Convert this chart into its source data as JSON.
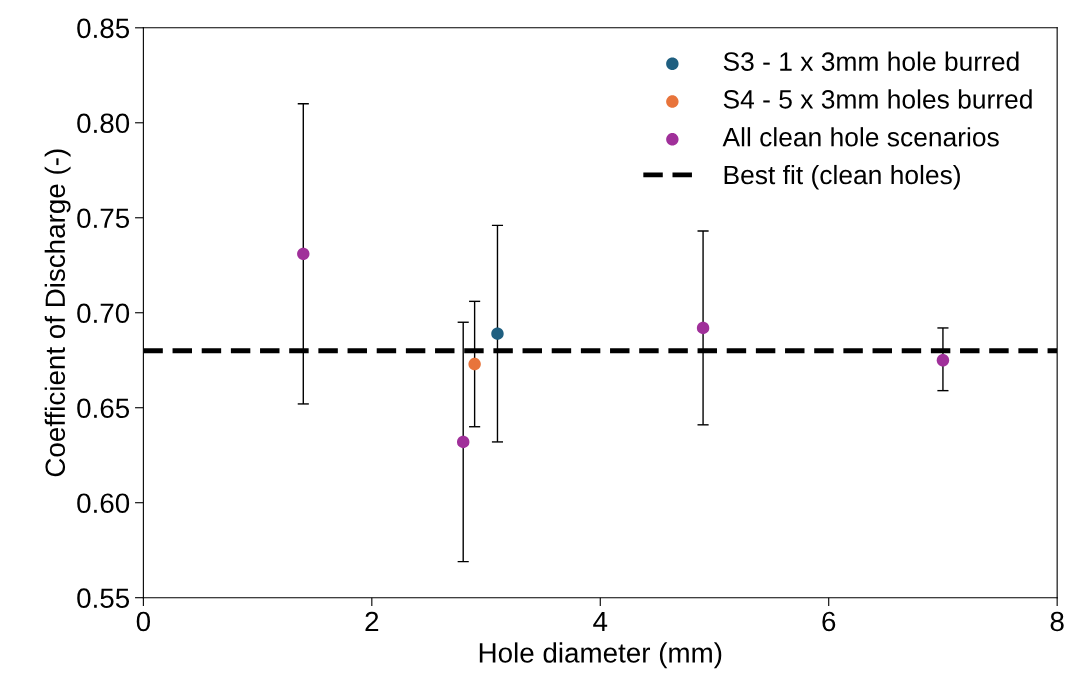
{
  "chart_data": {
    "type": "scatter",
    "xlabel": "Hole diameter (mm)",
    "ylabel": "Coefficient of Discharge (-)",
    "xlim": [
      0,
      8
    ],
    "xticks": [
      0,
      2,
      4,
      6,
      8
    ],
    "ylim": [
      0.55,
      0.85
    ],
    "yticks": [
      {
        "value": 0.55,
        "label": "0.55"
      },
      {
        "value": 0.6,
        "label": "0.60"
      },
      {
        "value": 0.65,
        "label": "0.65"
      },
      {
        "value": 0.7,
        "label": "0.70"
      },
      {
        "value": 0.75,
        "label": "0.75"
      },
      {
        "value": 0.8,
        "label": "0.80"
      },
      {
        "value": 0.85,
        "label": "0.85"
      }
    ],
    "grid": false,
    "legend": "top right",
    "marker": "circle",
    "series": [
      {
        "name": "S3 - 1 x 3mm hole burred",
        "color": "#1f5f80",
        "x": [
          3.1
        ],
        "values": [
          0.689
        ],
        "errors": [
          [
            0.632,
            0.746
          ]
        ]
      },
      {
        "name": "S4 - 5 x 3mm holes burred",
        "color": "#e8743b",
        "x": [
          2.9
        ],
        "values": [
          0.673
        ],
        "errors": [
          [
            0.64,
            0.706
          ]
        ]
      },
      {
        "name": "All clean hole scenarios",
        "color": "#a0309a",
        "x": [
          1.4,
          2.8,
          4.9,
          7.0
        ],
        "values": [
          0.731,
          0.632,
          0.692,
          0.675
        ],
        "errors": [
          [
            0.652,
            0.81
          ],
          [
            0.569,
            0.695
          ],
          [
            0.641,
            0.743
          ],
          [
            0.659,
            0.692
          ]
        ]
      },
      {
        "name": "Best fit (clean holes)",
        "type": "line",
        "color": "#000000",
        "line_style": "dashed",
        "marker": "none",
        "x": [
          0,
          8
        ],
        "values": [
          0.68,
          0.68
        ]
      }
    ]
  }
}
